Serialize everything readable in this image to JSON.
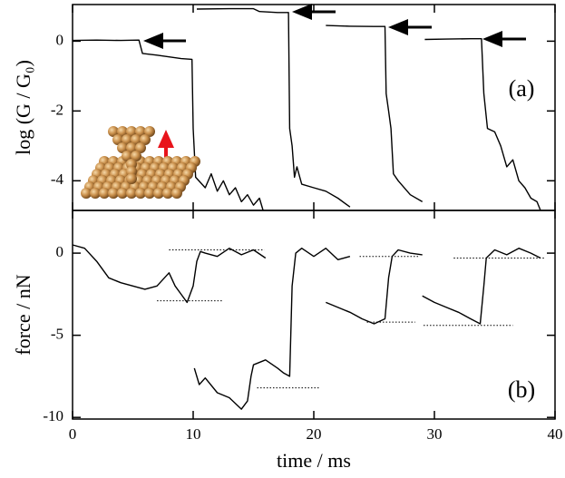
{
  "chart_data": [
    {
      "type": "line",
      "panel_label": "(a)",
      "ylabel": "log (G / G₀)",
      "color": "#000000",
      "xlim": [
        0,
        40
      ],
      "xticks": [
        0,
        10,
        20,
        30,
        40
      ],
      "ylim": [
        -4.85,
        1.05
      ],
      "yticks": [
        0,
        -2,
        -4
      ],
      "x": [
        0,
        2,
        4,
        5.5,
        5.8,
        7,
        8,
        9,
        9.9,
        10.0,
        10.2,
        11,
        11.5,
        12,
        12.5,
        13,
        13.5,
        14,
        14.5,
        15,
        15.5,
        15.8,
        null,
        10.3,
        13,
        15,
        15.5,
        17,
        17.9,
        18.0,
        18.2,
        18.4,
        18.6,
        19,
        20,
        21,
        22,
        23,
        null,
        21,
        23,
        25,
        25.9,
        26.0,
        26.2,
        26.4,
        26.6,
        27,
        28,
        29,
        null,
        29.2,
        31,
        33,
        33.9,
        34.1,
        34.4,
        35,
        35.5,
        36,
        36.5,
        37,
        37.5,
        38,
        38.5,
        38.8
      ],
      "values": [
        0.02,
        0.03,
        0.02,
        0.03,
        -0.35,
        -0.4,
        -0.45,
        -0.5,
        -0.52,
        -2.5,
        -3.9,
        -4.2,
        -3.8,
        -4.3,
        -4.0,
        -4.4,
        -4.2,
        -4.6,
        -4.4,
        -4.7,
        -4.5,
        -4.85,
        null,
        0.92,
        0.93,
        0.93,
        0.85,
        0.82,
        0.82,
        -2.5,
        -3.0,
        -3.9,
        -3.6,
        -4.1,
        -4.2,
        -4.3,
        -4.5,
        -4.75,
        null,
        0.45,
        0.43,
        0.42,
        0.42,
        -1.5,
        -2.0,
        -2.5,
        -3.8,
        -4.0,
        -4.4,
        -4.6,
        null,
        0.05,
        0.06,
        0.07,
        0.07,
        -1.5,
        -2.5,
        -2.6,
        -3.0,
        -3.6,
        -3.4,
        -4.0,
        -4.2,
        -4.5,
        -4.6,
        -4.85
      ]
    },
    {
      "type": "line",
      "panel_label": "(b)",
      "ylabel": "force / nN",
      "xlabel": "time / ms",
      "color": "#000000",
      "xlim": [
        0,
        40
      ],
      "xticks": [
        0,
        10,
        20,
        30,
        40
      ],
      "ylim": [
        -10.1,
        2.6
      ],
      "yticks": [
        0,
        -5,
        -10
      ],
      "x": [
        0,
        1,
        2,
        3,
        4,
        5,
        6,
        7,
        8,
        8.5,
        9,
        9.5,
        10,
        10.3,
        10.6,
        11,
        12,
        13,
        14,
        15,
        16,
        null,
        10.1,
        10.5,
        11,
        12,
        13,
        14,
        14.5,
        14.8,
        15,
        16,
        17,
        17.5,
        18.0,
        18.2,
        18.5,
        19,
        20,
        21,
        22,
        23,
        null,
        21,
        22,
        23,
        24,
        25,
        25.9,
        26.2,
        26.5,
        27,
        28,
        29,
        null,
        29,
        30,
        31,
        32,
        33,
        33.8,
        34.1,
        34.3,
        35,
        36,
        37,
        38,
        38.8
      ],
      "values": [
        0.5,
        0.3,
        -0.5,
        -1.5,
        -1.8,
        -2.0,
        -2.2,
        -2.0,
        -1.2,
        -2.0,
        -2.5,
        -3.0,
        -2.0,
        -0.5,
        0.1,
        0.0,
        -0.2,
        0.3,
        -0.1,
        0.2,
        -0.3,
        null,
        -7.0,
        -8.0,
        -7.6,
        -8.5,
        -8.8,
        -9.5,
        -9.0,
        -7.5,
        -6.8,
        -6.5,
        -7.0,
        -7.3,
        -7.5,
        -2.0,
        0.0,
        0.3,
        -0.2,
        0.3,
        -0.4,
        -0.2,
        null,
        -3.0,
        -3.3,
        -3.6,
        -4.0,
        -4.3,
        -4.0,
        -1.5,
        -0.2,
        0.2,
        0.0,
        -0.1,
        null,
        -2.6,
        -3.0,
        -3.3,
        -3.6,
        -4.0,
        -4.3,
        -2.0,
        -0.3,
        0.2,
        -0.1,
        0.3,
        0.0,
        -0.3
      ],
      "reference_lines": [
        {
          "x": [
            8.0,
            15.9
          ],
          "y": 0.2
        },
        {
          "x": [
            7.0,
            12.4
          ],
          "y": -2.9
        },
        {
          "x": [
            15.3,
            20.5
          ],
          "y": -8.2
        },
        {
          "x": [
            23.8,
            28.7
          ],
          "y": -0.2
        },
        {
          "x": [
            24.4,
            28.4
          ],
          "y": -4.2
        },
        {
          "x": [
            31.6,
            39.1
          ],
          "y": -0.3
        },
        {
          "x": [
            29.1,
            36.5
          ],
          "y": -4.4
        }
      ]
    }
  ]
}
